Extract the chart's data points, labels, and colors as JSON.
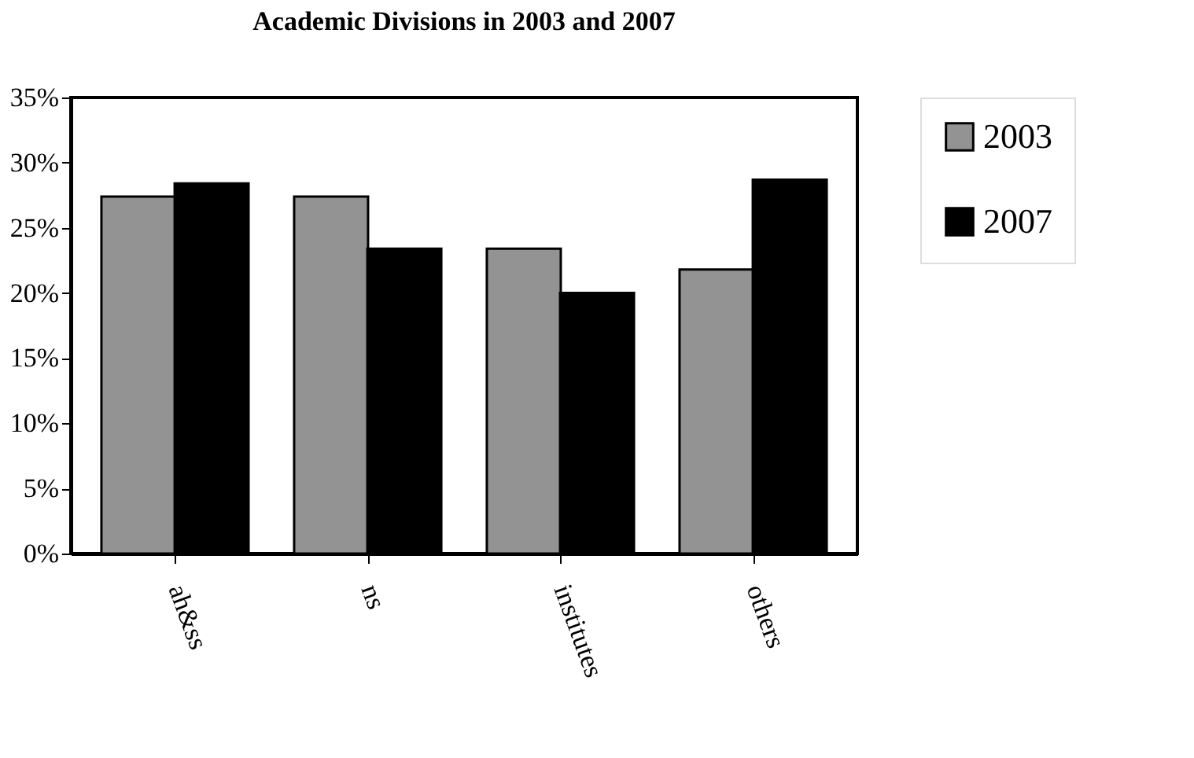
{
  "chart_data": {
    "type": "bar",
    "title": "Academic Divisions in 2003 and 2007",
    "categories": [
      "ah&ss",
      "ns",
      "institutes",
      "others"
    ],
    "series": [
      {
        "name": "2003",
        "color": "#939393",
        "values": [
          27.4,
          27.4,
          23.4,
          21.8
        ]
      },
      {
        "name": "2007",
        "color": "#000000",
        "values": [
          28.4,
          23.4,
          20.0,
          28.7
        ]
      }
    ],
    "ylim": [
      0,
      35
    ],
    "yticks": [
      {
        "value": 0,
        "label": "0%"
      },
      {
        "value": 5,
        "label": "5%"
      },
      {
        "value": 10,
        "label": "10%"
      },
      {
        "value": 15,
        "label": "15%"
      },
      {
        "value": 20,
        "label": "20%"
      },
      {
        "value": 25,
        "label": "25%"
      },
      {
        "value": 30,
        "label": "30%"
      },
      {
        "value": 35,
        "label": "35%"
      }
    ],
    "grid": false,
    "legend": "right"
  }
}
